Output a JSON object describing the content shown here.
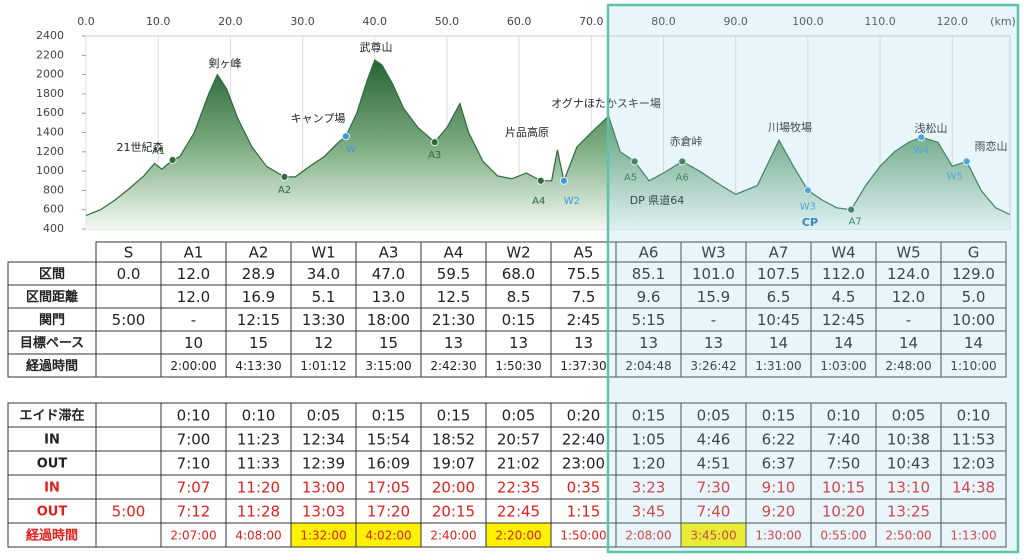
{
  "chart_data": {
    "type": "area",
    "x": [
      0,
      2,
      4,
      6,
      8,
      9.5,
      10.5,
      12,
      13,
      15,
      17,
      18.2,
      19.5,
      21,
      23,
      25,
      27.5,
      29,
      31,
      33,
      35,
      36,
      37.5,
      39,
      40,
      41,
      42.5,
      44,
      46,
      48.3,
      50,
      51.8,
      53,
      55,
      57,
      59,
      61,
      63,
      64.5,
      65.3,
      66.2,
      68,
      70,
      72.4,
      74,
      76,
      78,
      80,
      82.6,
      85,
      88,
      90,
      93,
      96,
      98,
      100,
      102,
      104,
      106,
      108,
      110,
      112,
      114,
      115.7,
      118,
      120,
      122,
      124,
      126,
      128
    ],
    "values": [
      540,
      600,
      700,
      820,
      950,
      1080,
      1020,
      1115,
      1150,
      1400,
      1800,
      2000,
      1850,
      1550,
      1250,
      1050,
      940,
      940,
      1050,
      1150,
      1300,
      1360,
      1600,
      1950,
      2150,
      2100,
      1900,
      1650,
      1450,
      1300,
      1450,
      1700,
      1400,
      1100,
      950,
      920,
      980,
      900,
      900,
      1220,
      900,
      1250,
      1400,
      1570,
      1200,
      1100,
      900,
      980,
      1100,
      1000,
      850,
      760,
      850,
      1320,
      1050,
      800,
      700,
      620,
      600,
      850,
      1050,
      1200,
      1300,
      1350,
      1300,
      1050,
      1100,
      800,
      620,
      550
    ],
    "color": "#2e6b3c",
    "xlim": [
      0,
      128
    ],
    "ylim": [
      400,
      2400
    ],
    "xticks": [
      {
        "value": 0,
        "label": "0.0"
      },
      {
        "value": 10,
        "label": "10.0"
      },
      {
        "value": 20,
        "label": "20.0"
      },
      {
        "value": 30,
        "label": "30.0"
      },
      {
        "value": 40,
        "label": "40.0"
      },
      {
        "value": 50,
        "label": "50.0"
      },
      {
        "value": 60,
        "label": "60.0"
      },
      {
        "value": 70,
        "label": "70.0"
      },
      {
        "value": 80,
        "label": "80.0"
      },
      {
        "value": 90,
        "label": "90.0"
      },
      {
        "value": 100,
        "label": "100.0"
      },
      {
        "value": 110,
        "label": "110.0"
      },
      {
        "value": 120,
        "label": "120.0"
      }
    ],
    "yticks": [
      400,
      600,
      800,
      1000,
      1200,
      1400,
      1600,
      1800,
      2000,
      2200,
      2400
    ],
    "x_unit_label": "(km)",
    "grid": true,
    "waypoints": [
      {
        "label": "A1",
        "x": 12,
        "y": 1115,
        "color": "#2e6b3c"
      },
      {
        "label": "A2",
        "x": 27.5,
        "y": 940,
        "color": "#2e6b3c"
      },
      {
        "label": "W",
        "x": 36,
        "y": 1360,
        "color": "#3a9ad9"
      },
      {
        "label": "A3",
        "x": 48.3,
        "y": 1300,
        "color": "#2e6b3c"
      },
      {
        "label": "A4",
        "x": 63,
        "y": 900,
        "color": "#2e6b3c"
      },
      {
        "label": "W2",
        "x": 66.2,
        "y": 900,
        "color": "#3a9ad9"
      },
      {
        "label": "A5",
        "x": 76,
        "y": 1100,
        "color": "#2e6b3c"
      },
      {
        "label": "A6",
        "x": 82.6,
        "y": 1100,
        "color": "#2e6b3c"
      },
      {
        "label": "W3",
        "x": 100,
        "y": 800,
        "color": "#3a9ad9"
      },
      {
        "label": "A7",
        "x": 106,
        "y": 600,
        "color": "#2e6b3c"
      },
      {
        "label": "W4",
        "x": 115.7,
        "y": 1350,
        "color": "#3a9ad9"
      },
      {
        "label": "W5",
        "x": 122,
        "y": 1100,
        "color": "#3a9ad9"
      }
    ],
    "places": [
      "21世紀森",
      "剣ヶ峰",
      "キャンプ場",
      "武尊山",
      "片品高原",
      "オグナほたかスキー場",
      "赤倉峠",
      "川場牧場",
      "浅松山",
      "雨恋山",
      "DP 県道64",
      "CP"
    ]
  },
  "table1": {
    "header": [
      "S",
      "A1",
      "A2",
      "W1",
      "A3",
      "A4",
      "W2",
      "A5",
      "A6",
      "W3",
      "A7",
      "W4",
      "W5",
      "G"
    ],
    "rows": [
      {
        "label": "区間",
        "cells": [
          "0.0",
          "12.0",
          "28.9",
          "34.0",
          "47.0",
          "59.5",
          "68.0",
          "75.5",
          "85.1",
          "101.0",
          "107.5",
          "112.0",
          "124.0",
          "129.0"
        ]
      },
      {
        "label": "区間距離",
        "cells": [
          null,
          "12.0",
          "16.9",
          "5.1",
          "13.0",
          "12.5",
          "8.5",
          "7.5",
          "9.6",
          "15.9",
          "6.5",
          "4.5",
          "12.0",
          "5.0"
        ]
      },
      {
        "label": "関門",
        "cells": [
          "5:00",
          "-",
          "12:15",
          "13:30",
          "18:00",
          "21:30",
          "0:15",
          "2:45",
          "5:15",
          "-",
          "10:45",
          "12:45",
          "-",
          "10:00"
        ]
      },
      {
        "label": "目標ペース",
        "cells": [
          null,
          "10",
          "15",
          "12",
          "15",
          "13",
          "13",
          "13",
          "13",
          "13",
          "14",
          "14",
          "14",
          "14"
        ]
      },
      {
        "label": "経過時間",
        "small": true,
        "cells": [
          null,
          "2:00:00",
          "4:13:30",
          "1:01:12",
          "3:15:00",
          "2:42:30",
          "1:50:30",
          "1:37:30",
          "2:04:48",
          "3:26:42",
          "1:31:00",
          "1:03:00",
          "2:48:00",
          "1:10:00"
        ]
      }
    ]
  },
  "table2": {
    "rows": [
      {
        "label": "エイド滞在",
        "color": "#222",
        "cells": [
          null,
          "0:10",
          "0:10",
          "0:05",
          "0:15",
          "0:15",
          "0:05",
          "0:20",
          "0:15",
          "0:05",
          "0:15",
          "0:10",
          "0:05",
          "0:10"
        ]
      },
      {
        "label": "IN",
        "color": "#222",
        "cells": [
          null,
          "7:00",
          "11:23",
          "12:34",
          "15:54",
          "18:52",
          "20:57",
          "22:40",
          "1:05",
          "4:46",
          "6:22",
          "7:40",
          "10:38",
          "11:53"
        ]
      },
      {
        "label": "OUT",
        "color": "#222",
        "cells": [
          null,
          "7:10",
          "11:33",
          "12:39",
          "16:09",
          "19:07",
          "21:02",
          "23:00",
          "1:20",
          "4:51",
          "6:37",
          "7:50",
          "10:43",
          "12:03"
        ]
      },
      {
        "label": "IN",
        "color": "#e0201c",
        "cells": [
          null,
          "7:07",
          "11:20",
          "13:00",
          "17:05",
          "20:00",
          "22:35",
          "0:35",
          "3:23",
          "7:30",
          "9:10",
          "10:15",
          "13:10",
          "14:38"
        ]
      },
      {
        "label": "OUT",
        "color": "#e0201c",
        "cells": [
          "5:00",
          "7:12",
          "11:28",
          "13:03",
          "17:20",
          "20:15",
          "22:45",
          "1:15",
          "3:45",
          "7:40",
          "9:20",
          "10:20",
          "13:25",
          null
        ]
      },
      {
        "label": "経過時間",
        "color": "#e0201c",
        "small": true,
        "highlight": [
          3,
          4,
          6,
          9
        ],
        "cells": [
          null,
          "2:07:00",
          "4:08:00",
          "1:32:00",
          "4:02:00",
          "2:40:00",
          "2:20:00",
          "1:50:00",
          "2:08:00",
          "3:45:00",
          "1:30:00",
          "0:55:00",
          "2:50:00",
          "1:13:00"
        ]
      }
    ]
  }
}
